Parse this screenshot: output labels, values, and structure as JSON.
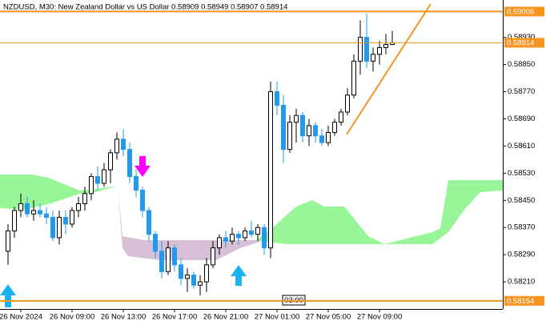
{
  "chart_data": {
    "type": "candlestick",
    "title": "NZDUSD, M30:  New Zealand Dollar vs US Dollar  0.58909 0.58949 0.58907 0.58914",
    "categories": [
      null,
      null,
      "26 Nov 2024",
      null,
      null,
      null,
      null,
      null,
      null,
      null,
      "26 Nov 09:00",
      null,
      null,
      null,
      null,
      null,
      null,
      null,
      "26 Nov 13:00",
      null,
      null,
      null,
      null,
      null,
      null,
      null,
      "26 Nov 17:00",
      null,
      null,
      null,
      null,
      null,
      null,
      null,
      "26 Nov 21:00",
      null,
      null,
      null,
      null,
      null,
      null,
      null,
      "27 Nov 01:00",
      null,
      null,
      null,
      null,
      null,
      null,
      null,
      "27 Nov 05:00",
      null,
      null,
      null,
      null,
      null,
      null,
      null,
      "27 Nov 09:00",
      null,
      null
    ],
    "open": [
      0.583,
      0.5836,
      0.5842,
      0.5844,
      0.5841,
      0.5842,
      0.5841,
      0.584,
      0.5834,
      0.584,
      0.5838,
      0.5842,
      0.5844,
      0.5847,
      0.5852,
      0.585,
      0.5854,
      0.5859,
      0.5863,
      0.586,
      0.5852,
      0.5848,
      0.5842,
      0.5835,
      0.583,
      0.5824,
      0.5831,
      0.5826,
      0.5822,
      0.5823,
      0.582,
      0.5821,
      0.5826,
      0.5831,
      0.5834,
      0.5833,
      0.5835,
      0.5834,
      0.5836,
      0.5835,
      0.5837,
      0.5831,
      0.5877,
      0.5873,
      0.586,
      0.5868,
      0.587,
      0.5864,
      0.5867,
      0.5864,
      0.5862,
      0.5865,
      0.5868,
      0.5871,
      0.5876,
      0.5886,
      0.5893,
      0.5886,
      0.5888,
      0.589,
      0.58909
    ],
    "high": [
      0.5838,
      0.5843,
      0.5847,
      0.5846,
      0.5845,
      0.5844,
      0.5843,
      0.5842,
      0.5842,
      0.5842,
      0.5843,
      0.5846,
      0.5849,
      0.5853,
      0.5855,
      0.5856,
      0.586,
      0.5865,
      0.5866,
      0.5862,
      0.5854,
      0.5849,
      0.5843,
      0.5836,
      0.5833,
      0.5833,
      0.5832,
      0.5828,
      0.5825,
      0.5824,
      0.5823,
      0.5828,
      0.5833,
      0.5835,
      0.5836,
      0.5837,
      0.5836,
      0.5837,
      0.5839,
      0.5838,
      0.5838,
      0.588,
      0.588,
      0.5876,
      0.587,
      0.5872,
      0.5871,
      0.5869,
      0.5868,
      0.5866,
      0.5867,
      0.5869,
      0.5872,
      0.5878,
      0.5888,
      0.5898,
      0.59,
      0.589,
      0.5892,
      0.5894,
      0.58949
    ],
    "low": [
      0.5826,
      0.5834,
      0.584,
      0.584,
      0.5839,
      0.584,
      0.5838,
      0.5833,
      0.5832,
      0.5835,
      0.5837,
      0.584,
      0.5842,
      0.5845,
      0.5848,
      0.5849,
      0.585,
      0.5857,
      0.5858,
      0.585,
      0.5846,
      0.584,
      0.5833,
      0.5828,
      0.5822,
      0.5823,
      0.5824,
      0.582,
      0.5818,
      0.5819,
      0.5817,
      0.5818,
      0.5825,
      0.5829,
      0.5831,
      0.5832,
      0.5832,
      0.5833,
      0.5834,
      0.5833,
      0.5829,
      0.5828,
      0.587,
      0.5856,
      0.5859,
      0.5862,
      0.5862,
      0.5861,
      0.5862,
      0.5861,
      0.5861,
      0.5864,
      0.5867,
      0.587,
      0.5875,
      0.5882,
      0.5884,
      0.5883,
      0.5885,
      0.5888,
      0.58907
    ],
    "close": [
      0.5836,
      0.5842,
      0.5844,
      0.5841,
      0.5842,
      0.5841,
      0.584,
      0.5834,
      0.584,
      0.5838,
      0.5842,
      0.5844,
      0.5847,
      0.5852,
      0.585,
      0.5854,
      0.5859,
      0.5863,
      0.586,
      0.5852,
      0.5848,
      0.5842,
      0.5835,
      0.583,
      0.5824,
      0.5831,
      0.5826,
      0.5822,
      0.5823,
      0.582,
      0.5821,
      0.5826,
      0.5831,
      0.5834,
      0.5833,
      0.5835,
      0.5834,
      0.5836,
      0.5835,
      0.5837,
      0.5831,
      0.5877,
      0.5873,
      0.586,
      0.5868,
      0.587,
      0.5864,
      0.5867,
      0.5864,
      0.5862,
      0.5865,
      0.5868,
      0.5871,
      0.5876,
      0.5886,
      0.5893,
      0.5886,
      0.5888,
      0.589,
      0.58909,
      0.58914
    ],
    "up_color": "#ffffff",
    "down_color": "#1e9bf0",
    "ylim": [
      0.5813,
      0.5904
    ],
    "yticks": [
      {
        "value": 0.5893,
        "label": "0.58930"
      },
      {
        "value": 0.5885,
        "label": "0.58850"
      },
      {
        "value": 0.5877,
        "label": "0.58770"
      },
      {
        "value": 0.5869,
        "label": "0.58690"
      },
      {
        "value": 0.5861,
        "label": "0.58610"
      },
      {
        "value": 0.5853,
        "label": "0.58530"
      },
      {
        "value": 0.5845,
        "label": "0.58450"
      },
      {
        "value": 0.5837,
        "label": "0.58370"
      },
      {
        "value": 0.5829,
        "label": "0.58290"
      },
      {
        "value": 0.5821,
        "label": "0.58210"
      }
    ],
    "level_lines": [
      0.59006,
      0.58154
    ],
    "level_color": "#f7931e",
    "current_price": 0.58914,
    "time_marker": "03:00",
    "grid": false
  }
}
